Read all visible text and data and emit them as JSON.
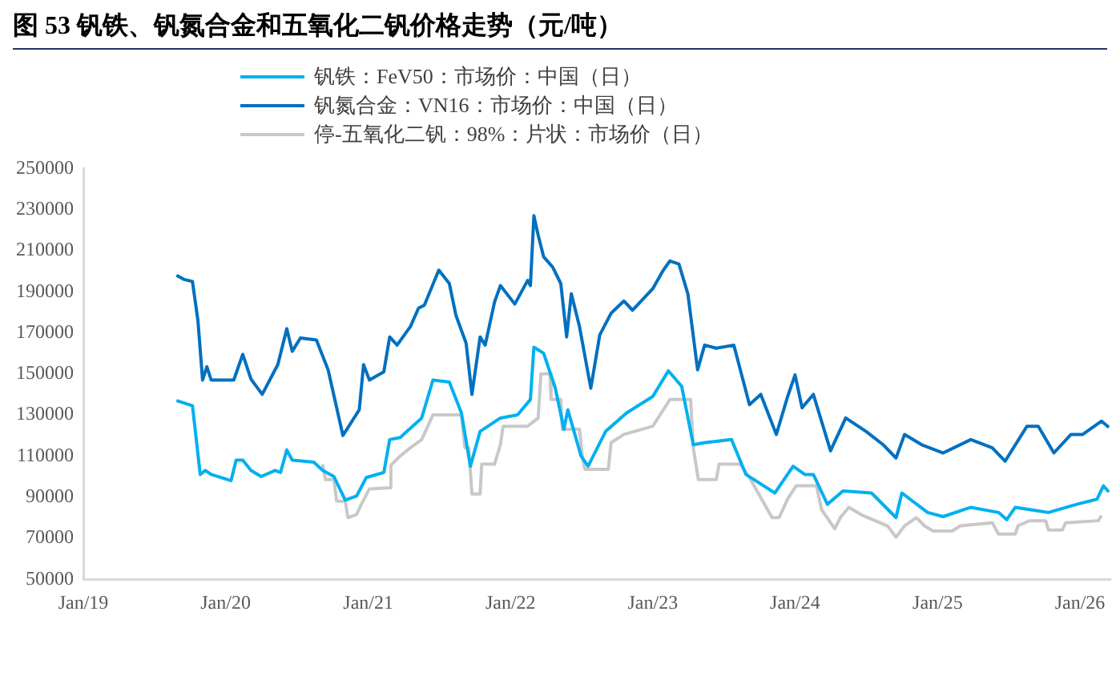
{
  "chart_data": {
    "type": "line",
    "title": "图 53 钒铁、钒氮合金和五氧化二钒价格走势（元/吨）",
    "legend": "top",
    "xlim": [
      "2019-01-01",
      "2026-03-20"
    ],
    "xticks": [
      {
        "value": "2019-01",
        "label": "Jan/19"
      },
      {
        "value": "2020-01",
        "label": "Jan/20"
      },
      {
        "value": "2021-01",
        "label": "Jan/21"
      },
      {
        "value": "2022-01",
        "label": "Jan/22"
      },
      {
        "value": "2023-01",
        "label": "Jan/23"
      },
      {
        "value": "2024-01",
        "label": "Jan/24"
      },
      {
        "value": "2025-01",
        "label": "Jan/25"
      },
      {
        "value": "2026-01",
        "label": "Jan/26"
      }
    ],
    "ylim": [
      50000,
      250000
    ],
    "yticks": [
      50000,
      70000,
      90000,
      110000,
      130000,
      150000,
      170000,
      190000,
      210000,
      230000,
      250000
    ],
    "series": [
      {
        "name": "钒铁：FeV50：市场价：中国（日）",
        "color": "#00b0f0",
        "x": [
          "2019-08-28",
          "2019-10-08",
          "2019-10-28",
          "2019-11-10",
          "2019-11-25",
          "2020-01-15",
          "2020-01-28",
          "2020-02-14",
          "2020-03-06",
          "2020-04-01",
          "2020-05-07",
          "2020-05-21",
          "2020-06-06",
          "2020-06-20",
          "2020-08-14",
          "2020-09-06",
          "2020-10-05",
          "2020-11-03",
          "2020-12-02",
          "2020-12-27",
          "2021-02-10",
          "2021-02-25",
          "2021-03-24",
          "2021-05-18",
          "2021-06-16",
          "2021-07-28",
          "2021-08-28",
          "2021-09-20",
          "2021-10-15",
          "2021-12-06",
          "2022-01-19",
          "2022-02-21",
          "2022-03-02",
          "2022-03-27",
          "2022-04-26",
          "2022-05-18",
          "2022-05-28",
          "2022-07-01",
          "2022-07-19",
          "2022-09-02",
          "2022-10-26",
          "2023-01-01",
          "2023-02-10",
          "2023-03-16",
          "2023-04-15",
          "2023-05-14",
          "2023-07-22",
          "2023-08-28",
          "2023-11-10",
          "2023-12-27",
          "2024-01-26",
          "2024-02-17",
          "2024-03-24",
          "2024-05-03",
          "2024-07-15",
          "2024-09-16",
          "2024-10-01",
          "2024-12-06",
          "2025-01-15",
          "2025-03-27",
          "2025-06-06",
          "2025-06-27",
          "2025-07-19",
          "2025-10-12",
          "2025-12-24",
          "2026-02-14",
          "2026-03-02",
          "2026-03-16"
        ],
        "values": [
          137000,
          134500,
          101000,
          103000,
          101000,
          98000,
          108000,
          108000,
          103000,
          100000,
          103000,
          102000,
          113000,
          108000,
          107000,
          103000,
          100000,
          88500,
          90500,
          99500,
          102000,
          118000,
          119000,
          128500,
          147000,
          146000,
          131000,
          105000,
          122000,
          128500,
          130000,
          137500,
          163000,
          160000,
          143000,
          123000,
          132500,
          110000,
          105000,
          122000,
          131000,
          139000,
          151500,
          144000,
          115500,
          116500,
          118000,
          101000,
          92000,
          105000,
          101000,
          101000,
          86500,
          93000,
          92000,
          80000,
          92000,
          82500,
          80500,
          85000,
          82500,
          79000,
          85000,
          82500,
          86500,
          89000,
          95500,
          92500
        ]
      },
      {
        "name": "钒氮合金：VN16：市场价：中国（日）",
        "color": "#0070c0",
        "x": [
          "2019-08-28",
          "2019-09-16",
          "2019-10-08",
          "2019-10-22",
          "2019-11-03",
          "2019-11-14",
          "2019-11-25",
          "2020-01-22",
          "2020-02-14",
          "2020-03-06",
          "2020-04-04",
          "2020-05-14",
          "2020-06-06",
          "2020-06-20",
          "2020-07-11",
          "2020-08-21",
          "2020-09-20",
          "2020-10-28",
          "2020-12-09",
          "2020-12-20",
          "2021-01-04",
          "2021-02-10",
          "2021-02-25",
          "2021-03-16",
          "2021-04-19",
          "2021-05-10",
          "2021-05-25",
          "2021-07-01",
          "2021-07-28",
          "2021-08-14",
          "2021-09-09",
          "2021-09-24",
          "2021-10-15",
          "2021-10-28",
          "2021-11-21",
          "2021-12-06",
          "2022-01-12",
          "2022-02-14",
          "2022-02-21",
          "2022-03-02",
          "2022-03-13",
          "2022-03-27",
          "2022-04-19",
          "2022-05-10",
          "2022-05-25",
          "2022-06-06",
          "2022-06-27",
          "2022-07-26",
          "2022-08-18",
          "2022-09-16",
          "2022-10-19",
          "2022-11-10",
          "2023-01-01",
          "2023-01-28",
          "2023-02-14",
          "2023-03-09",
          "2023-04-01",
          "2023-04-26",
          "2023-05-14",
          "2023-06-13",
          "2023-07-28",
          "2023-09-06",
          "2023-10-05",
          "2023-11-14",
          "2023-12-13",
          "2024-01-01",
          "2024-01-19",
          "2024-02-17",
          "2024-04-01",
          "2024-05-10",
          "2024-07-01",
          "2024-08-14",
          "2024-09-16",
          "2024-10-08",
          "2024-11-21",
          "2025-01-15",
          "2025-03-27",
          "2025-05-21",
          "2025-06-23",
          "2025-08-18",
          "2025-09-16",
          "2025-10-26",
          "2025-12-09",
          "2026-01-08",
          "2026-02-25",
          "2026-03-16"
        ],
        "values": [
          198000,
          196000,
          195000,
          176000,
          147000,
          153500,
          147000,
          147000,
          159500,
          147500,
          140000,
          154500,
          172000,
          161000,
          167500,
          166500,
          152000,
          120000,
          132500,
          154500,
          147000,
          151000,
          168000,
          164000,
          173000,
          182000,
          183500,
          200500,
          194000,
          178500,
          165000,
          140000,
          168000,
          164000,
          185000,
          193000,
          184000,
          195500,
          193000,
          227000,
          217500,
          207000,
          202000,
          194000,
          168000,
          189000,
          173000,
          143000,
          169000,
          179500,
          185500,
          181000,
          191500,
          200500,
          205000,
          203500,
          189000,
          152000,
          164000,
          162500,
          164000,
          135000,
          140000,
          120500,
          139000,
          149500,
          133500,
          140000,
          112500,
          128500,
          122000,
          115500,
          109000,
          120500,
          115500,
          111500,
          118000,
          114000,
          107500,
          124500,
          124500,
          111500,
          120500,
          120500,
          127000,
          124000
        ]
      },
      {
        "name": "停-五氧化二钒：98%：片状：市场价（日）",
        "color": "#c8c8c8",
        "x": [
          "2020-09-06",
          "2020-09-13",
          "2020-10-05",
          "2020-10-12",
          "2020-11-03",
          "2020-11-10",
          "2020-12-02",
          "2020-12-13",
          "2021-01-04",
          "2021-02-25",
          "2021-02-28",
          "2021-03-24",
          "2021-04-19",
          "2021-05-18",
          "2021-06-16",
          "2021-08-28",
          "2021-09-06",
          "2021-09-16",
          "2021-09-24",
          "2021-10-15",
          "2021-10-19",
          "2021-11-21",
          "2021-12-06",
          "2021-12-13",
          "2022-02-14",
          "2022-03-13",
          "2022-03-20",
          "2022-04-12",
          "2022-04-15",
          "2022-05-10",
          "2022-05-14",
          "2022-06-27",
          "2022-07-05",
          "2022-07-11",
          "2022-09-09",
          "2022-09-16",
          "2022-10-19",
          "2023-01-01",
          "2023-02-14",
          "2023-04-08",
          "2023-04-15",
          "2023-04-28",
          "2023-06-13",
          "2023-06-20",
          "2023-08-14",
          "2023-09-06",
          "2023-11-03",
          "2023-11-21",
          "2023-12-13",
          "2024-01-04",
          "2024-02-25",
          "2024-03-09",
          "2024-04-12",
          "2024-04-26",
          "2024-05-18",
          "2024-06-23",
          "2024-08-25",
          "2024-09-16",
          "2024-10-08",
          "2024-11-07",
          "2024-11-28",
          "2024-12-20",
          "2025-02-07",
          "2025-02-28",
          "2025-05-21",
          "2025-06-06",
          "2025-07-19",
          "2025-07-26",
          "2025-08-25",
          "2025-10-05",
          "2025-10-12",
          "2025-11-17",
          "2025-11-25",
          "2026-02-17",
          "2026-02-25"
        ],
        "values": [
          106000,
          98500,
          98500,
          88000,
          88000,
          80000,
          81500,
          86000,
          94000,
          94500,
          105500,
          110000,
          114000,
          118000,
          130000,
          130000,
          114000,
          114000,
          91500,
          91500,
          106000,
          106000,
          115500,
          124500,
          124500,
          128500,
          150000,
          150000,
          137500,
          137500,
          123000,
          123000,
          108500,
          103500,
          103500,
          116500,
          120500,
          124500,
          137500,
          137500,
          114000,
          98500,
          98500,
          106000,
          106000,
          99500,
          80000,
          80000,
          89000,
          95500,
          95500,
          84000,
          74500,
          80000,
          85000,
          81000,
          76000,
          70500,
          76000,
          80000,
          76000,
          73500,
          73500,
          76000,
          77500,
          72000,
          72000,
          76000,
          78500,
          78500,
          74000,
          74000,
          77500,
          78500,
          81000
        ]
      }
    ]
  }
}
